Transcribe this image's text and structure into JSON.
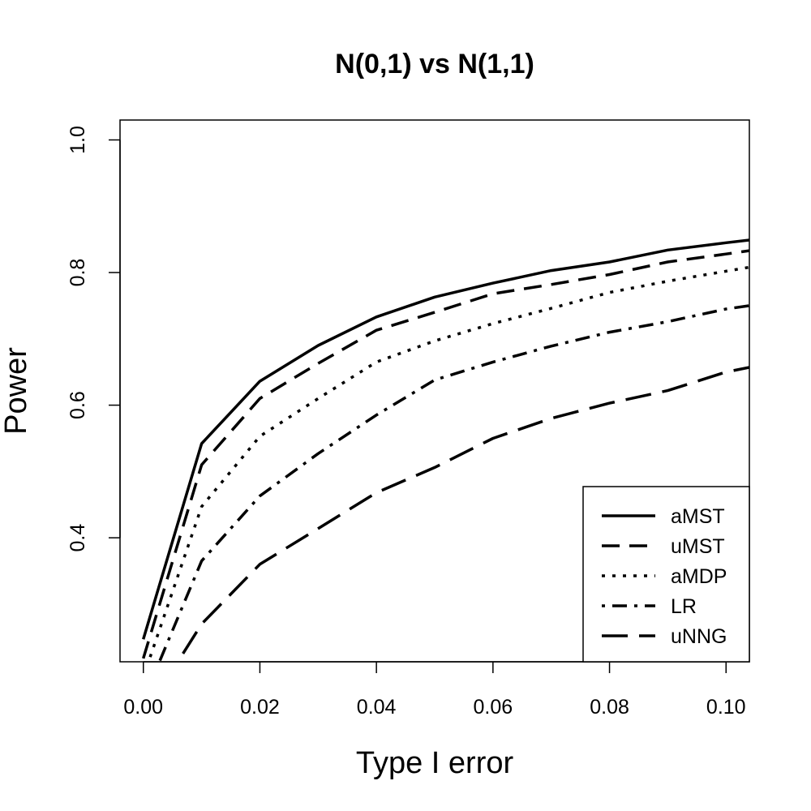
{
  "chart_data": {
    "type": "line",
    "title": "N(0,1) vs N(1,1)",
    "xlabel": "Type I error",
    "ylabel": "Power",
    "xlim": [
      -0.004,
      0.104
    ],
    "ylim": [
      0.213,
      1.03
    ],
    "x_ticks": [
      0.0,
      0.02,
      0.04,
      0.06,
      0.08,
      0.1
    ],
    "x_tick_labels": [
      "0.00",
      "0.02",
      "0.04",
      "0.06",
      "0.08",
      "0.10"
    ],
    "y_ticks": [
      0.4,
      0.6,
      0.8,
      1.0
    ],
    "y_tick_labels": [
      "0.4",
      "0.6",
      "0.8",
      "1.0"
    ],
    "grid": false,
    "legend_position": "bottom-right",
    "x": [
      0.0,
      0.01,
      0.02,
      0.03,
      0.04,
      0.05,
      0.06,
      0.07,
      0.08,
      0.09,
      0.1,
      0.104
    ],
    "series": [
      {
        "name": "aMST",
        "style": "solid",
        "values": [
          0.247,
          0.542,
          0.636,
          0.69,
          0.733,
          0.763,
          0.784,
          0.803,
          0.816,
          0.834,
          0.845,
          0.849
        ]
      },
      {
        "name": "uMST",
        "style": "dashed",
        "values": [
          0.218,
          0.51,
          0.61,
          0.663,
          0.713,
          0.74,
          0.768,
          0.782,
          0.797,
          0.816,
          0.828,
          0.833
        ]
      },
      {
        "name": "aMDP",
        "style": "dotted",
        "values": [
          0.19,
          0.447,
          0.553,
          0.61,
          0.665,
          0.697,
          0.723,
          0.746,
          0.77,
          0.787,
          0.802,
          0.808
        ]
      },
      {
        "name": "LR",
        "style": "dotdash",
        "values": [
          0.155,
          0.365,
          0.463,
          0.527,
          0.585,
          0.638,
          0.665,
          0.689,
          0.71,
          0.726,
          0.745,
          0.75
        ]
      },
      {
        "name": "uNNG",
        "style": "longdash",
        "values": [
          0.13,
          0.27,
          0.36,
          0.414,
          0.468,
          0.506,
          0.55,
          0.58,
          0.603,
          0.622,
          0.65,
          0.657
        ]
      }
    ]
  }
}
